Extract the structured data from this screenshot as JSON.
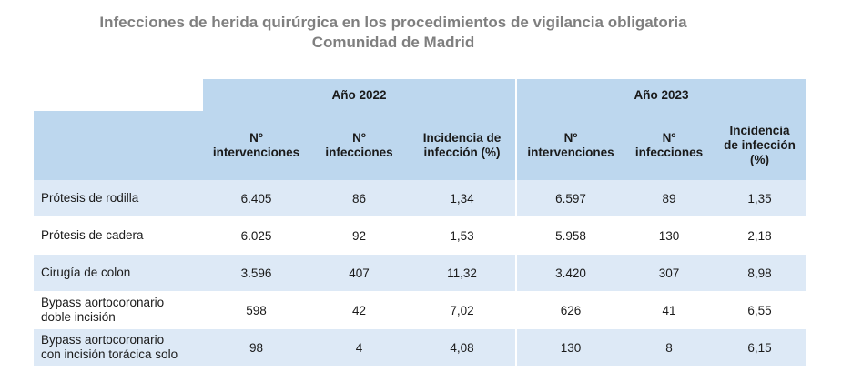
{
  "title": {
    "line1": "Infecciones de herida quirúrgica en los procedimientos de vigilancia obligatoria",
    "line2": "Comunidad de Madrid"
  },
  "years": [
    "Año 2022",
    "Año 2023"
  ],
  "columns": {
    "interventions": [
      "Nº",
      "intervenciones"
    ],
    "infections": [
      "Nº",
      "infecciones"
    ],
    "incidence_2022": [
      "Incidencia de",
      "infección (%)"
    ],
    "incidence_2023": [
      "Incidencia",
      "de infección",
      "(%)"
    ]
  },
  "rows": [
    {
      "label": [
        "Prótesis de rodilla"
      ],
      "y2022": [
        "6.405",
        "86",
        "1,34"
      ],
      "y2023": [
        "6.597",
        "89",
        "1,35"
      ]
    },
    {
      "label": [
        "Prótesis de cadera"
      ],
      "y2022": [
        "6.025",
        "92",
        "1,53"
      ],
      "y2023": [
        "5.958",
        "130",
        "2,18"
      ]
    },
    {
      "label": [
        "Cirugía de colon"
      ],
      "y2022": [
        "3.596",
        "407",
        "11,32"
      ],
      "y2023": [
        "3.420",
        "307",
        "8,98"
      ]
    },
    {
      "label": [
        "Bypass aortocoronario",
        "doble incisión"
      ],
      "y2022": [
        "598",
        "42",
        "7,02"
      ],
      "y2023": [
        "626",
        "41",
        "6,55"
      ]
    },
    {
      "label": [
        "Bypass aortocoronario",
        "con incisión torácica solo"
      ],
      "y2022": [
        "98",
        "4",
        "4,08"
      ],
      "y2023": [
        "130",
        "8",
        "6,15"
      ]
    }
  ]
}
